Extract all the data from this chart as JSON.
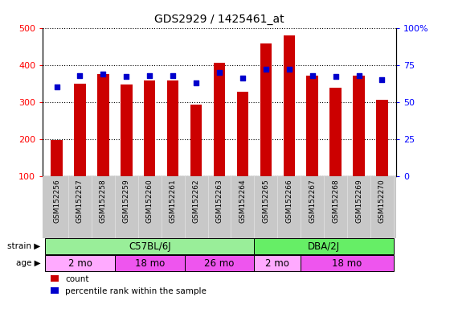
{
  "title": "GDS2929 / 1425461_at",
  "samples": [
    "GSM152256",
    "GSM152257",
    "GSM152258",
    "GSM152259",
    "GSM152260",
    "GSM152261",
    "GSM152262",
    "GSM152263",
    "GSM152264",
    "GSM152265",
    "GSM152266",
    "GSM152267",
    "GSM152268",
    "GSM152269",
    "GSM152270"
  ],
  "counts": [
    197,
    350,
    375,
    348,
    358,
    358,
    293,
    405,
    328,
    458,
    480,
    372,
    338,
    370,
    305
  ],
  "percentiles": [
    60,
    68,
    69,
    67,
    68,
    68,
    63,
    70,
    66,
    72,
    72,
    68,
    67,
    68,
    65
  ],
  "bar_color": "#CC0000",
  "dot_color": "#0000CC",
  "ylim_left": [
    100,
    500
  ],
  "ylim_right": [
    0,
    100
  ],
  "yticks_left": [
    100,
    200,
    300,
    400,
    500
  ],
  "yticks_right": [
    0,
    25,
    50,
    75,
    100
  ],
  "yticklabels_right": [
    "0",
    "25",
    "50",
    "75",
    "100%"
  ],
  "strain_groups": [
    {
      "label": "C57BL/6J",
      "start": 0,
      "end": 9,
      "color": "#99EE99"
    },
    {
      "label": "DBA/2J",
      "start": 9,
      "end": 15,
      "color": "#66EE66"
    }
  ],
  "age_groups": [
    {
      "label": "2 mo",
      "start": 0,
      "end": 3,
      "color": "#FFAAFF"
    },
    {
      "label": "18 mo",
      "start": 3,
      "end": 6,
      "color": "#EE55EE"
    },
    {
      "label": "26 mo",
      "start": 6,
      "end": 9,
      "color": "#EE55EE"
    },
    {
      "label": "2 mo",
      "start": 9,
      "end": 11,
      "color": "#FFAAFF"
    },
    {
      "label": "18 mo",
      "start": 11,
      "end": 15,
      "color": "#EE55EE"
    }
  ],
  "strain_label": "strain",
  "age_label": "age",
  "legend_count": "count",
  "legend_percentile": "percentile rank within the sample",
  "bar_width": 0.5,
  "dot_size": 25,
  "xticklabel_bg": "#C8C8C8",
  "bar_bottom": 100
}
